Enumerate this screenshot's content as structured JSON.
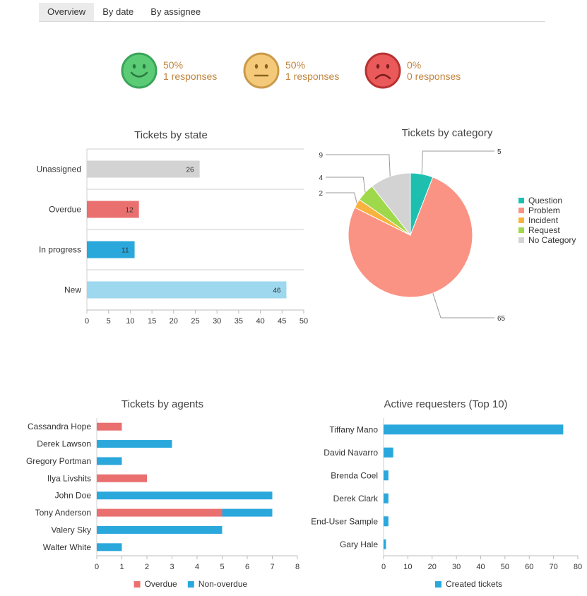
{
  "tabs": [
    {
      "label": "Overview",
      "active": true
    },
    {
      "label": "By date",
      "active": false
    },
    {
      "label": "By assignee",
      "active": false
    }
  ],
  "satisfaction": [
    {
      "icon": "happy-face-icon",
      "percent": "50%",
      "responses": "1 responses",
      "face_color": "#5bcb76",
      "ring_color": "#3aa55a"
    },
    {
      "icon": "neutral-face-icon",
      "percent": "50%",
      "responses": "1 responses",
      "face_color": "#f4c97a",
      "ring_color": "#c99a4a"
    },
    {
      "icon": "sad-face-icon",
      "percent": "0%",
      "responses": "0 responses",
      "face_color": "#ea5a5a",
      "ring_color": "#b83232"
    }
  ],
  "chart_data": [
    {
      "id": "state",
      "type": "bar",
      "title": "Tickets by state",
      "categories": [
        "Unassigned",
        "Overdue",
        "In progress",
        "New"
      ],
      "values": [
        26,
        12,
        11,
        46
      ],
      "colors": [
        "#d3d3d3",
        "#ea7070",
        "#2aa8dc",
        "#9dd8ee"
      ],
      "xlim": [
        0,
        50
      ],
      "ticks": [
        "0",
        "5",
        "10",
        "15",
        "20",
        "25",
        "30",
        "35",
        "40",
        "45",
        "50"
      ]
    },
    {
      "id": "category",
      "type": "pie",
      "title": "Tickets by category",
      "labels": [
        "Question",
        "Problem",
        "Incident",
        "Request",
        "No Category"
      ],
      "values": [
        5,
        65,
        2,
        4,
        9
      ],
      "value_labels": [
        "5",
        "65",
        "2",
        "4",
        "9"
      ],
      "colors": [
        "#1fbfb0",
        "#fa9383",
        "#f7b33e",
        "#9fd94b",
        "#d3d3d3"
      ],
      "legend": "right"
    },
    {
      "id": "agents",
      "type": "bar",
      "title": "Tickets by agents",
      "categories": [
        "Cassandra Hope",
        "Derek Lawson",
        "Gregory Portman",
        "Ilya Livshits",
        "John Doe",
        "Tony Anderson",
        "Valery Sky",
        "Walter White"
      ],
      "series": [
        {
          "name": "Overdue",
          "color": "#ea7070",
          "values": [
            1,
            0,
            0,
            2,
            0,
            5,
            0,
            0
          ]
        },
        {
          "name": "Non-overdue",
          "color": "#2aa8dc",
          "values": [
            0,
            3,
            1,
            0,
            7,
            2,
            5,
            1
          ]
        }
      ],
      "xlim": [
        0,
        8
      ],
      "ticks": [
        "0",
        "1",
        "2",
        "3",
        "4",
        "5",
        "6",
        "7",
        "8"
      ],
      "legend": "bottom"
    },
    {
      "id": "requesters",
      "type": "bar",
      "title": "Active requesters (Top 10)",
      "categories": [
        "Tiffany Mano",
        "David Navarro",
        "Brenda Coel",
        "Derek Clark",
        "End-User Sample",
        "Gary Hale"
      ],
      "series": [
        {
          "name": "Created tickets",
          "color": "#2aa8dc",
          "values": [
            74,
            4,
            2,
            2,
            2,
            1
          ]
        }
      ],
      "xlim": [
        0,
        80
      ],
      "ticks": [
        "0",
        "10",
        "20",
        "30",
        "40",
        "50",
        "60",
        "70",
        "80"
      ],
      "legend": "bottom"
    }
  ]
}
